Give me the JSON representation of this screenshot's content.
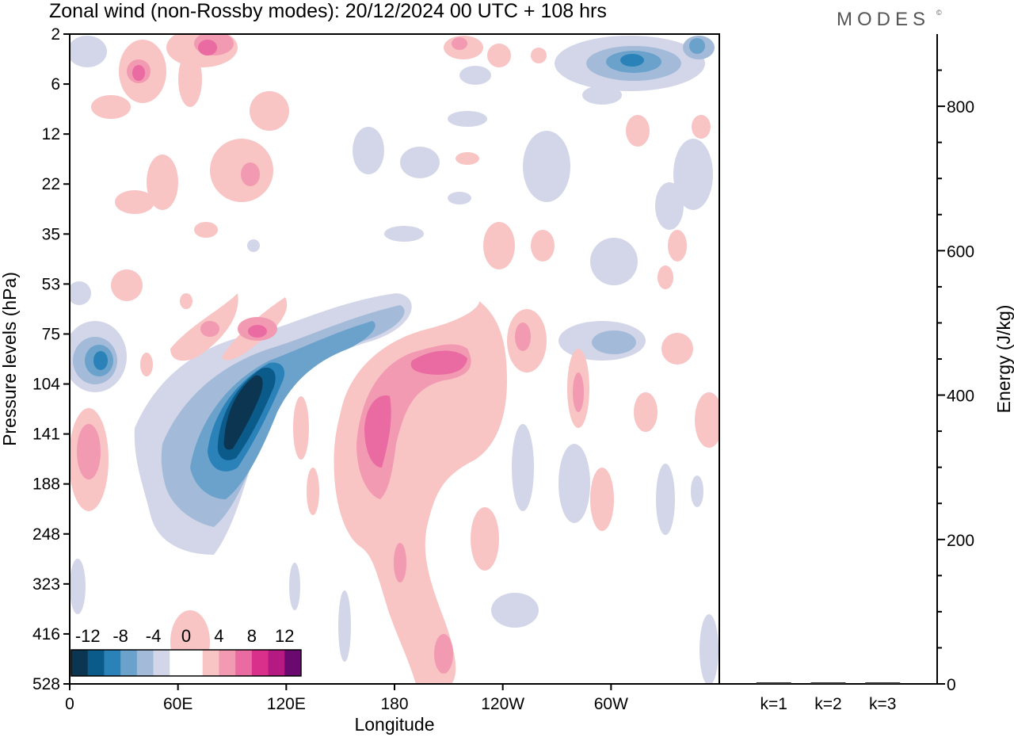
{
  "title": "Zonal wind (non-Rossby modes):  20/12/2024  00 UTC  + 108 hrs",
  "logo": "MODES",
  "logo_mark": "©",
  "chart_data": [
    {
      "type": "heatmap",
      "title": "Zonal wind (non-Rossby modes):  20/12/2024  00 UTC  + 108 hrs",
      "xlabel": "Longitude",
      "ylabel": "Pressure levels (hPa)",
      "x_ticks": [
        "0",
        "60E",
        "120E",
        "180",
        "120W",
        "60W"
      ],
      "x_tick_values": [
        0,
        60,
        120,
        180,
        240,
        300
      ],
      "xlim": [
        0,
        360
      ],
      "y_ticks": [
        "2",
        "6",
        "12",
        "22",
        "35",
        "53",
        "75",
        "104",
        "141",
        "188",
        "248",
        "323",
        "416",
        "528"
      ],
      "y_scale": "categorical pressure levels (top to bottom)",
      "colorbar": {
        "labels": [
          "-12",
          "-8",
          "-4",
          "0",
          "4",
          "8",
          "12"
        ],
        "levels": [
          -14,
          -12,
          -10,
          -8,
          -6,
          -4,
          -2,
          0,
          2,
          4,
          6,
          8,
          10,
          12,
          14
        ],
        "colors": [
          "#0b3550",
          "#0a5a8a",
          "#2a82b8",
          "#6aa2cc",
          "#a3bbd9",
          "#d3d6e8",
          "#ffffff",
          "#ffffff",
          "#f8c4c4",
          "#f29ab2",
          "#ea6aa2",
          "#d9308c",
          "#b41a82",
          "#6a0a6e"
        ]
      },
      "features": [
        {
          "name": "negative-core",
          "lon": 97,
          "level": "141",
          "value": -14
        },
        {
          "name": "negative-band",
          "lon": 150,
          "level": "75",
          "value": -6
        },
        {
          "name": "negative-west",
          "lon": 18,
          "level": "75",
          "value": -8
        },
        {
          "name": "negative-upper-east",
          "lon": 310,
          "level": "6",
          "value": -8
        },
        {
          "name": "positive-core",
          "lon": 200,
          "level": "104",
          "value": 8
        },
        {
          "name": "positive-column",
          "lon": 170,
          "level": "141",
          "value": 8
        },
        {
          "name": "positive-upper",
          "lon": 75,
          "level": "2",
          "value": 8
        },
        {
          "name": "positive-mid",
          "lon": 105,
          "level": "75",
          "value": 6
        }
      ]
    },
    {
      "type": "bar",
      "ylabel": "Energy (J/kg)",
      "categories": [
        "k=1",
        "k=2",
        "k=3"
      ],
      "values": [
        1,
        1,
        1
      ],
      "ylim": [
        0,
        900
      ],
      "y_ticks": [
        "0",
        "200",
        "400",
        "600",
        "800"
      ],
      "y_tick_values": [
        0,
        200,
        400,
        600,
        800
      ]
    }
  ]
}
